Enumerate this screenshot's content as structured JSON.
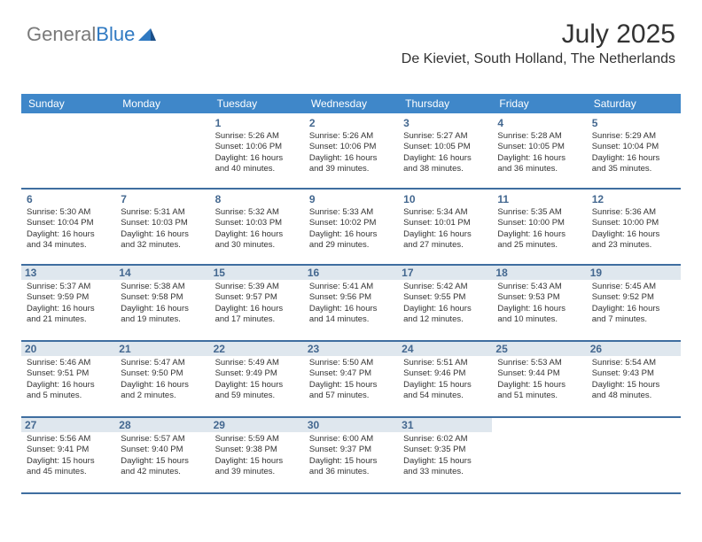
{
  "brand": {
    "part1": "General",
    "part2": "Blue"
  },
  "title": "July 2025",
  "location": "De Kieviet, South Holland, The Netherlands",
  "colors": {
    "header_bg": "#3f87c9",
    "header_text": "#ffffff",
    "day_num": "#446890",
    "border": "#3f6ea0",
    "shaded_bg": "#dfe7ee"
  },
  "day_headers": [
    "Sunday",
    "Monday",
    "Tuesday",
    "Wednesday",
    "Thursday",
    "Friday",
    "Saturday"
  ],
  "weeks": [
    [
      null,
      null,
      {
        "n": "1",
        "s": false,
        "sr": "5:26 AM",
        "ss": "10:06 PM",
        "d": "16 hours and 40 minutes."
      },
      {
        "n": "2",
        "s": false,
        "sr": "5:26 AM",
        "ss": "10:06 PM",
        "d": "16 hours and 39 minutes."
      },
      {
        "n": "3",
        "s": false,
        "sr": "5:27 AM",
        "ss": "10:05 PM",
        "d": "16 hours and 38 minutes."
      },
      {
        "n": "4",
        "s": false,
        "sr": "5:28 AM",
        "ss": "10:05 PM",
        "d": "16 hours and 36 minutes."
      },
      {
        "n": "5",
        "s": false,
        "sr": "5:29 AM",
        "ss": "10:04 PM",
        "d": "16 hours and 35 minutes."
      }
    ],
    [
      {
        "n": "6",
        "s": false,
        "sr": "5:30 AM",
        "ss": "10:04 PM",
        "d": "16 hours and 34 minutes."
      },
      {
        "n": "7",
        "s": false,
        "sr": "5:31 AM",
        "ss": "10:03 PM",
        "d": "16 hours and 32 minutes."
      },
      {
        "n": "8",
        "s": false,
        "sr": "5:32 AM",
        "ss": "10:03 PM",
        "d": "16 hours and 30 minutes."
      },
      {
        "n": "9",
        "s": false,
        "sr": "5:33 AM",
        "ss": "10:02 PM",
        "d": "16 hours and 29 minutes."
      },
      {
        "n": "10",
        "s": false,
        "sr": "5:34 AM",
        "ss": "10:01 PM",
        "d": "16 hours and 27 minutes."
      },
      {
        "n": "11",
        "s": false,
        "sr": "5:35 AM",
        "ss": "10:00 PM",
        "d": "16 hours and 25 minutes."
      },
      {
        "n": "12",
        "s": false,
        "sr": "5:36 AM",
        "ss": "10:00 PM",
        "d": "16 hours and 23 minutes."
      }
    ],
    [
      {
        "n": "13",
        "s": true,
        "sr": "5:37 AM",
        "ss": "9:59 PM",
        "d": "16 hours and 21 minutes."
      },
      {
        "n": "14",
        "s": true,
        "sr": "5:38 AM",
        "ss": "9:58 PM",
        "d": "16 hours and 19 minutes."
      },
      {
        "n": "15",
        "s": true,
        "sr": "5:39 AM",
        "ss": "9:57 PM",
        "d": "16 hours and 17 minutes."
      },
      {
        "n": "16",
        "s": true,
        "sr": "5:41 AM",
        "ss": "9:56 PM",
        "d": "16 hours and 14 minutes."
      },
      {
        "n": "17",
        "s": true,
        "sr": "5:42 AM",
        "ss": "9:55 PM",
        "d": "16 hours and 12 minutes."
      },
      {
        "n": "18",
        "s": true,
        "sr": "5:43 AM",
        "ss": "9:53 PM",
        "d": "16 hours and 10 minutes."
      },
      {
        "n": "19",
        "s": true,
        "sr": "5:45 AM",
        "ss": "9:52 PM",
        "d": "16 hours and 7 minutes."
      }
    ],
    [
      {
        "n": "20",
        "s": true,
        "sr": "5:46 AM",
        "ss": "9:51 PM",
        "d": "16 hours and 5 minutes."
      },
      {
        "n": "21",
        "s": true,
        "sr": "5:47 AM",
        "ss": "9:50 PM",
        "d": "16 hours and 2 minutes."
      },
      {
        "n": "22",
        "s": true,
        "sr": "5:49 AM",
        "ss": "9:49 PM",
        "d": "15 hours and 59 minutes."
      },
      {
        "n": "23",
        "s": true,
        "sr": "5:50 AM",
        "ss": "9:47 PM",
        "d": "15 hours and 57 minutes."
      },
      {
        "n": "24",
        "s": true,
        "sr": "5:51 AM",
        "ss": "9:46 PM",
        "d": "15 hours and 54 minutes."
      },
      {
        "n": "25",
        "s": true,
        "sr": "5:53 AM",
        "ss": "9:44 PM",
        "d": "15 hours and 51 minutes."
      },
      {
        "n": "26",
        "s": true,
        "sr": "5:54 AM",
        "ss": "9:43 PM",
        "d": "15 hours and 48 minutes."
      }
    ],
    [
      {
        "n": "27",
        "s": true,
        "sr": "5:56 AM",
        "ss": "9:41 PM",
        "d": "15 hours and 45 minutes."
      },
      {
        "n": "28",
        "s": true,
        "sr": "5:57 AM",
        "ss": "9:40 PM",
        "d": "15 hours and 42 minutes."
      },
      {
        "n": "29",
        "s": true,
        "sr": "5:59 AM",
        "ss": "9:38 PM",
        "d": "15 hours and 39 minutes."
      },
      {
        "n": "30",
        "s": true,
        "sr": "6:00 AM",
        "ss": "9:37 PM",
        "d": "15 hours and 36 minutes."
      },
      {
        "n": "31",
        "s": true,
        "sr": "6:02 AM",
        "ss": "9:35 PM",
        "d": "15 hours and 33 minutes."
      },
      null,
      null
    ]
  ],
  "labels": {
    "sunrise": "Sunrise:",
    "sunset": "Sunset:",
    "daylight": "Daylight:"
  }
}
